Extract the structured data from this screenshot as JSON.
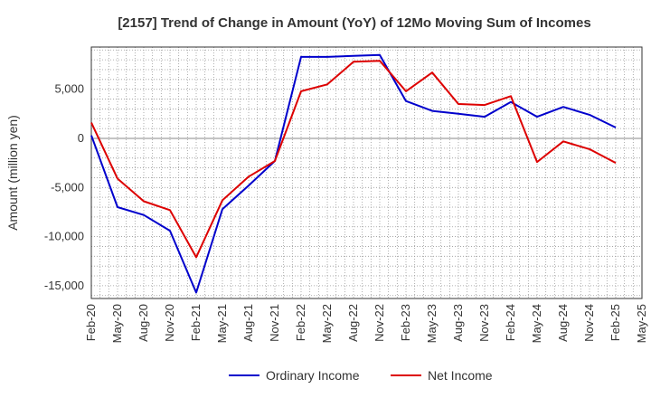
{
  "chart_data": {
    "type": "line",
    "title": "[2157]  Trend of Change in Amount (YoY) of 12Mo Moving Sum of Incomes",
    "ylabel": "Amount (million yen)",
    "xlabel": "",
    "categories": [
      "Feb-20",
      "May-20",
      "Aug-20",
      "Nov-20",
      "Feb-21",
      "May-21",
      "Aug-21",
      "Nov-21",
      "Feb-22",
      "May-22",
      "Aug-22",
      "Nov-22",
      "Feb-23",
      "May-23",
      "Aug-23",
      "Nov-23",
      "Feb-24",
      "May-24",
      "Aug-24",
      "Nov-24",
      "Feb-25",
      "May-25"
    ],
    "yticks": [
      -15000,
      -10000,
      -5000,
      0,
      5000
    ],
    "ytick_labels": [
      "-15,000",
      "-10,000",
      "-5,000",
      "0",
      "5,000"
    ],
    "ylim": [
      -16300,
      9300
    ],
    "grid": true,
    "legend_position": "bottom",
    "series": [
      {
        "name": "Ordinary Income",
        "color": "#0000cc",
        "values": [
          300,
          -7000,
          -7800,
          -9400,
          -15700,
          -7200,
          -4800,
          -2300,
          8300,
          8300,
          8400,
          8500,
          3800,
          2800,
          2500,
          2200,
          3700,
          2200,
          3200,
          2400,
          1100,
          null
        ]
      },
      {
        "name": "Net Income",
        "color": "#dd0000",
        "values": [
          1600,
          -4100,
          -6400,
          -7300,
          -12100,
          -6300,
          -3900,
          -2300,
          4800,
          5500,
          7800,
          7900,
          4800,
          6700,
          3500,
          3400,
          4300,
          -2400,
          -300,
          -1100,
          -2500,
          null
        ]
      }
    ]
  }
}
